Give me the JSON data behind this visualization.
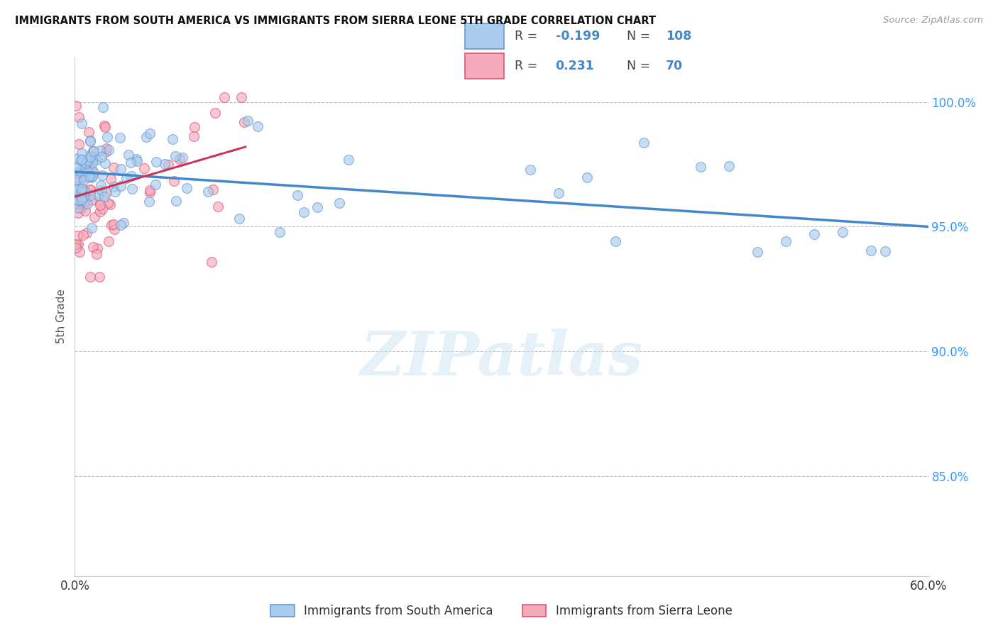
{
  "title": "IMMIGRANTS FROM SOUTH AMERICA VS IMMIGRANTS FROM SIERRA LEONE 5TH GRADE CORRELATION CHART",
  "source": "Source: ZipAtlas.com",
  "ylabel": "5th Grade",
  "xlim": [
    0.0,
    0.6
  ],
  "ylim": [
    81.0,
    101.8
  ],
  "blue_R": "-0.199",
  "blue_N": "108",
  "pink_R": "0.231",
  "pink_N": "70",
  "blue_color": "#aaccee",
  "pink_color": "#f5aabb",
  "blue_edge_color": "#6699cc",
  "pink_edge_color": "#dd5577",
  "blue_line_color": "#4488cc",
  "pink_line_color": "#cc3355",
  "legend_label_blue": "Immigrants from South America",
  "legend_label_pink": "Immigrants from Sierra Leone",
  "watermark": "ZIPatlas",
  "yticks": [
    85.0,
    90.0,
    95.0,
    100.0
  ],
  "blue_trend_x": [
    0.0,
    0.6
  ],
  "blue_trend_y": [
    97.2,
    95.0
  ],
  "pink_trend_x": [
    0.0,
    0.12
  ],
  "pink_trend_y": [
    96.2,
    98.2
  ]
}
